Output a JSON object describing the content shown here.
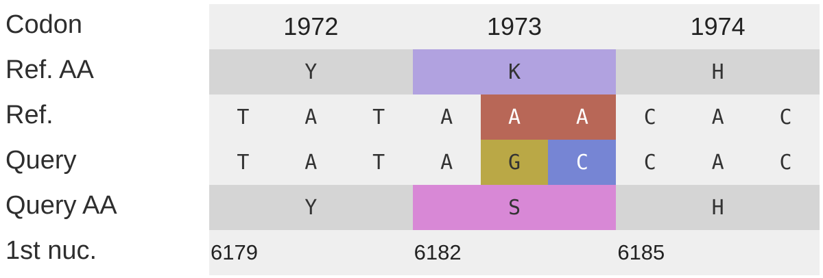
{
  "row_labels": [
    "Codon",
    "Ref. AA",
    "Ref.",
    "Query",
    "Query AA",
    "1st nuc."
  ],
  "codons": [
    "1972",
    "1973",
    "1974"
  ],
  "ref_aa": [
    {
      "letter": "Y",
      "color": "#d5d5d5"
    },
    {
      "letter": "K",
      "color": "#b1a2e0"
    },
    {
      "letter": "H",
      "color": "#d5d5d5"
    }
  ],
  "ref_nt": [
    {
      "base": "T",
      "color": "#efefef",
      "text_color": "#333333"
    },
    {
      "base": "A",
      "color": "#efefef",
      "text_color": "#333333"
    },
    {
      "base": "T",
      "color": "#efefef",
      "text_color": "#333333"
    },
    {
      "base": "A",
      "color": "#efefef",
      "text_color": "#333333"
    },
    {
      "base": "A",
      "color": "#b86757",
      "text_color": "#ffffff"
    },
    {
      "base": "A",
      "color": "#b86757",
      "text_color": "#ffffff"
    },
    {
      "base": "C",
      "color": "#efefef",
      "text_color": "#333333"
    },
    {
      "base": "A",
      "color": "#efefef",
      "text_color": "#333333"
    },
    {
      "base": "C",
      "color": "#efefef",
      "text_color": "#333333"
    }
  ],
  "query_nt": [
    {
      "base": "T",
      "color": "#efefef",
      "text_color": "#333333"
    },
    {
      "base": "A",
      "color": "#efefef",
      "text_color": "#333333"
    },
    {
      "base": "T",
      "color": "#efefef",
      "text_color": "#333333"
    },
    {
      "base": "A",
      "color": "#efefef",
      "text_color": "#333333"
    },
    {
      "base": "G",
      "color": "#baa846",
      "text_color": "#333333"
    },
    {
      "base": "C",
      "color": "#7685d4",
      "text_color": "#ffffff"
    },
    {
      "base": "C",
      "color": "#efefef",
      "text_color": "#333333"
    },
    {
      "base": "A",
      "color": "#efefef",
      "text_color": "#333333"
    },
    {
      "base": "C",
      "color": "#efefef",
      "text_color": "#333333"
    }
  ],
  "query_aa": [
    {
      "letter": "Y",
      "color": "#d5d5d5"
    },
    {
      "letter": "S",
      "color": "#d888d6"
    },
    {
      "letter": "H",
      "color": "#d5d5d5"
    }
  ],
  "first_nuc": [
    "6179",
    "6182",
    "6185"
  ]
}
